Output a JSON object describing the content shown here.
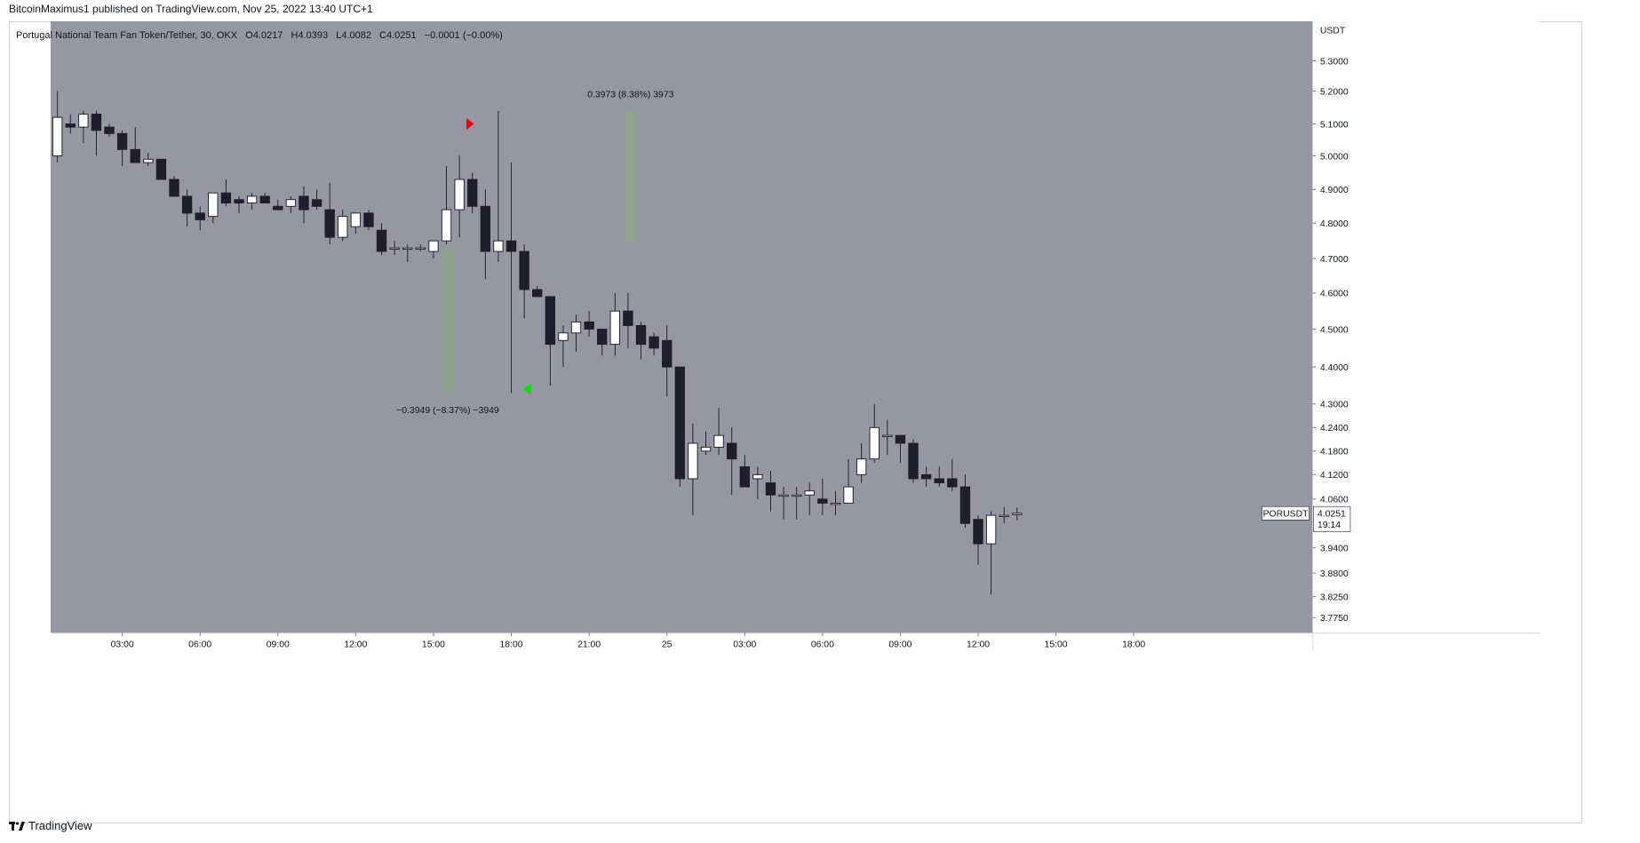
{
  "header": {
    "published_line": "BitcoinMaximus1 published on TradingView.com, Nov 25, 2022 13:40 UTC+1"
  },
  "legend": {
    "symbol_line": "Portugal National Team Fan Token/Tether, 30, OKX",
    "open_label": "O",
    "open_value": "4.0217",
    "high_label": "H",
    "high_value": "4.0393",
    "low_label": "L",
    "low_value": "4.0082",
    "close_label": "C",
    "close_value": "4.0251",
    "change": "−0.0001 (−0.00%)"
  },
  "footer": {
    "brand": "TradingView"
  },
  "colors": {
    "chart_background": "#9598a1",
    "bull_candle": "#ffffff",
    "bear_candle": "#1e1f2b",
    "wick": "#1e1f2b",
    "measure_box": "#8ba48a",
    "sell_marker": "#ff0000",
    "buy_marker": "#00e600",
    "axis_background": "#ffffff"
  },
  "chart_data": {
    "type": "candlestick",
    "interval": "30",
    "currency_label": "USDT",
    "y_ticks": [
      "5.3000",
      "5.2000",
      "5.1000",
      "5.0000",
      "4.9000",
      "4.8000",
      "4.7000",
      "4.6000",
      "4.5000",
      "4.4000",
      "4.3000",
      "4.2400",
      "4.1800",
      "4.1200",
      "4.0600",
      "3.9400",
      "3.8800",
      "3.8250",
      "3.7750"
    ],
    "x_ticks": [
      {
        "label": "03:00",
        "t": 6
      },
      {
        "label": "06:00",
        "t": 12
      },
      {
        "label": "09:00",
        "t": 18
      },
      {
        "label": "12:00",
        "t": 24
      },
      {
        "label": "15:00",
        "t": 30
      },
      {
        "label": "18:00",
        "t": 36
      },
      {
        "label": "21:00",
        "t": 42
      },
      {
        "label": "25",
        "t": 48
      },
      {
        "label": "03:00",
        "t": 54
      },
      {
        "label": "06:00",
        "t": 60
      },
      {
        "label": "09:00",
        "t": 66
      },
      {
        "label": "12:00",
        "t": 72
      },
      {
        "label": "15:00",
        "t": 78
      },
      {
        "label": "18:00",
        "t": 84
      }
    ],
    "t_range": [
      1.0,
      86.3
    ],
    "candles": [
      {
        "t": 1,
        "o": 5.0,
        "h": 5.2,
        "l": 4.98,
        "c": 5.12
      },
      {
        "t": 2,
        "o": 5.1,
        "h": 5.13,
        "l": 5.07,
        "c": 5.09
      },
      {
        "t": 3,
        "o": 5.09,
        "h": 5.14,
        "l": 5.04,
        "c": 5.13
      },
      {
        "t": 4,
        "o": 5.13,
        "h": 5.14,
        "l": 5.0,
        "c": 5.08
      },
      {
        "t": 5,
        "o": 5.09,
        "h": 5.1,
        "l": 5.06,
        "c": 5.07
      },
      {
        "t": 6,
        "o": 5.07,
        "h": 5.08,
        "l": 4.97,
        "c": 5.02
      },
      {
        "t": 7,
        "o": 5.02,
        "h": 5.09,
        "l": 4.98,
        "c": 4.98
      },
      {
        "t": 8,
        "o": 4.98,
        "h": 5.01,
        "l": 4.97,
        "c": 4.99
      },
      {
        "t": 9,
        "o": 4.99,
        "h": 4.99,
        "l": 4.93,
        "c": 4.93
      },
      {
        "t": 10,
        "o": 4.93,
        "h": 4.94,
        "l": 4.88,
        "c": 4.88
      },
      {
        "t": 11,
        "o": 4.88,
        "h": 4.9,
        "l": 4.79,
        "c": 4.83
      },
      {
        "t": 12,
        "o": 4.83,
        "h": 4.85,
        "l": 4.78,
        "c": 4.81
      },
      {
        "t": 13,
        "o": 4.82,
        "h": 4.89,
        "l": 4.8,
        "c": 4.89
      },
      {
        "t": 14,
        "o": 4.89,
        "h": 4.93,
        "l": 4.85,
        "c": 4.86
      },
      {
        "t": 15,
        "o": 4.87,
        "h": 4.88,
        "l": 4.83,
        "c": 4.86
      },
      {
        "t": 16,
        "o": 4.86,
        "h": 4.89,
        "l": 4.84,
        "c": 4.88
      },
      {
        "t": 17,
        "o": 4.88,
        "h": 4.89,
        "l": 4.86,
        "c": 4.86
      },
      {
        "t": 18,
        "o": 4.85,
        "h": 4.87,
        "l": 4.84,
        "c": 4.84
      },
      {
        "t": 19,
        "o": 4.85,
        "h": 4.88,
        "l": 4.83,
        "c": 4.87
      },
      {
        "t": 20,
        "o": 4.88,
        "h": 4.91,
        "l": 4.8,
        "c": 4.84
      },
      {
        "t": 21,
        "o": 4.87,
        "h": 4.9,
        "l": 4.84,
        "c": 4.85
      },
      {
        "t": 22,
        "o": 4.84,
        "h": 4.92,
        "l": 4.74,
        "c": 4.76
      },
      {
        "t": 23,
        "o": 4.76,
        "h": 4.84,
        "l": 4.75,
        "c": 4.82
      },
      {
        "t": 24,
        "o": 4.79,
        "h": 4.83,
        "l": 4.77,
        "c": 4.83
      },
      {
        "t": 25,
        "o": 4.83,
        "h": 4.84,
        "l": 4.78,
        "c": 4.79
      },
      {
        "t": 26,
        "o": 4.78,
        "h": 4.8,
        "l": 4.71,
        "c": 4.72
      },
      {
        "t": 27,
        "o": 4.73,
        "h": 4.75,
        "l": 4.71,
        "c": 4.73
      },
      {
        "t": 28,
        "o": 4.73,
        "h": 4.74,
        "l": 4.69,
        "c": 4.73
      },
      {
        "t": 29,
        "o": 4.73,
        "h": 4.74,
        "l": 4.72,
        "c": 4.73
      },
      {
        "t": 30,
        "o": 4.72,
        "h": 4.75,
        "l": 4.7,
        "c": 4.75
      },
      {
        "t": 31,
        "o": 4.75,
        "h": 4.97,
        "l": 4.74,
        "c": 4.84
      },
      {
        "t": 32,
        "o": 4.84,
        "h": 5.0,
        "l": 4.76,
        "c": 4.93
      },
      {
        "t": 33,
        "o": 4.93,
        "h": 4.95,
        "l": 4.83,
        "c": 4.85
      },
      {
        "t": 34,
        "o": 4.85,
        "h": 4.9,
        "l": 4.64,
        "c": 4.72
      },
      {
        "t": 35,
        "o": 4.72,
        "h": 5.14,
        "l": 4.69,
        "c": 4.75
      },
      {
        "t": 36,
        "o": 4.75,
        "h": 4.98,
        "l": 4.33,
        "c": 4.72
      },
      {
        "t": 37,
        "o": 4.72,
        "h": 4.74,
        "l": 4.53,
        "c": 4.61
      },
      {
        "t": 38,
        "o": 4.61,
        "h": 4.62,
        "l": 4.59,
        "c": 4.59
      },
      {
        "t": 39,
        "o": 4.59,
        "h": 4.59,
        "l": 4.35,
        "c": 4.46
      },
      {
        "t": 40,
        "o": 4.47,
        "h": 4.51,
        "l": 4.4,
        "c": 4.49
      },
      {
        "t": 41,
        "o": 4.49,
        "h": 4.54,
        "l": 4.44,
        "c": 4.52
      },
      {
        "t": 42,
        "o": 4.52,
        "h": 4.55,
        "l": 4.48,
        "c": 4.5
      },
      {
        "t": 43,
        "o": 4.5,
        "h": 4.5,
        "l": 4.43,
        "c": 4.46
      },
      {
        "t": 44,
        "o": 4.46,
        "h": 4.6,
        "l": 4.43,
        "c": 4.55
      },
      {
        "t": 45,
        "o": 4.55,
        "h": 4.6,
        "l": 4.45,
        "c": 4.51
      },
      {
        "t": 46,
        "o": 4.51,
        "h": 4.52,
        "l": 4.42,
        "c": 4.46
      },
      {
        "t": 47,
        "o": 4.48,
        "h": 4.49,
        "l": 4.43,
        "c": 4.45
      },
      {
        "t": 48,
        "o": 4.47,
        "h": 4.51,
        "l": 4.32,
        "c": 4.4
      },
      {
        "t": 49,
        "o": 4.4,
        "h": 4.4,
        "l": 4.09,
        "c": 4.11
      },
      {
        "t": 50,
        "o": 4.11,
        "h": 4.25,
        "l": 4.02,
        "c": 4.2
      },
      {
        "t": 51,
        "o": 4.18,
        "h": 4.23,
        "l": 4.17,
        "c": 4.19
      },
      {
        "t": 52,
        "o": 4.19,
        "h": 4.29,
        "l": 4.17,
        "c": 4.22
      },
      {
        "t": 53,
        "o": 4.2,
        "h": 4.24,
        "l": 4.07,
        "c": 4.16
      },
      {
        "t": 54,
        "o": 4.14,
        "h": 4.17,
        "l": 4.09,
        "c": 4.09
      },
      {
        "t": 55,
        "o": 4.11,
        "h": 4.14,
        "l": 4.06,
        "c": 4.12
      },
      {
        "t": 56,
        "o": 4.1,
        "h": 4.13,
        "l": 4.03,
        "c": 4.07
      },
      {
        "t": 57,
        "o": 4.07,
        "h": 4.09,
        "l": 4.01,
        "c": 4.07
      },
      {
        "t": 58,
        "o": 4.07,
        "h": 4.09,
        "l": 4.01,
        "c": 4.07
      },
      {
        "t": 59,
        "o": 4.07,
        "h": 4.1,
        "l": 4.02,
        "c": 4.08
      },
      {
        "t": 60,
        "o": 4.06,
        "h": 4.11,
        "l": 4.02,
        "c": 4.05
      },
      {
        "t": 61,
        "o": 4.05,
        "h": 4.08,
        "l": 4.02,
        "c": 4.05
      },
      {
        "t": 62,
        "o": 4.05,
        "h": 4.16,
        "l": 4.05,
        "c": 4.09
      },
      {
        "t": 63,
        "o": 4.12,
        "h": 4.2,
        "l": 4.1,
        "c": 4.16
      },
      {
        "t": 64,
        "o": 4.16,
        "h": 4.3,
        "l": 4.15,
        "c": 4.24
      },
      {
        "t": 65,
        "o": 4.22,
        "h": 4.26,
        "l": 4.17,
        "c": 4.22
      },
      {
        "t": 66,
        "o": 4.22,
        "h": 4.22,
        "l": 4.15,
        "c": 4.2
      },
      {
        "t": 67,
        "o": 4.2,
        "h": 4.21,
        "l": 4.1,
        "c": 4.11
      },
      {
        "t": 68,
        "o": 4.12,
        "h": 4.14,
        "l": 4.09,
        "c": 4.11
      },
      {
        "t": 69,
        "o": 4.11,
        "h": 4.14,
        "l": 4.09,
        "c": 4.1
      },
      {
        "t": 70,
        "o": 4.11,
        "h": 4.16,
        "l": 4.08,
        "c": 4.09
      },
      {
        "t": 71,
        "o": 4.09,
        "h": 4.12,
        "l": 3.99,
        "c": 4.0
      },
      {
        "t": 72,
        "o": 4.01,
        "h": 4.02,
        "l": 3.9,
        "c": 3.95
      },
      {
        "t": 73,
        "o": 3.95,
        "h": 4.03,
        "l": 3.83,
        "c": 4.02
      },
      {
        "t": 74,
        "o": 4.02,
        "h": 4.04,
        "l": 4.0,
        "c": 4.02
      },
      {
        "t": 75,
        "o": 4.0217,
        "h": 4.0393,
        "l": 4.0082,
        "c": 4.0251
      }
    ],
    "annotations": [
      {
        "kind": "measure",
        "t_start": 30.6,
        "t_end": 31.6,
        "y_top": 4.73,
        "y_bottom": 4.33,
        "label": "−0.3949 (−8.37%) −3949",
        "label_pos": "below"
      },
      {
        "kind": "measure",
        "t_start": 44.7,
        "t_end": 45.7,
        "y_top": 5.14,
        "y_bottom": 4.75,
        "label": "0.3973 (8.38%) 3973",
        "label_pos": "above"
      },
      {
        "kind": "sell-marker",
        "t": 32.8,
        "y": 5.1
      },
      {
        "kind": "buy-marker",
        "t": 37.2,
        "y": 4.34
      }
    ],
    "last_price": {
      "symbol": "PORUSDT",
      "price": "4.0251",
      "countdown": "19:14",
      "value": 4.0251
    }
  }
}
